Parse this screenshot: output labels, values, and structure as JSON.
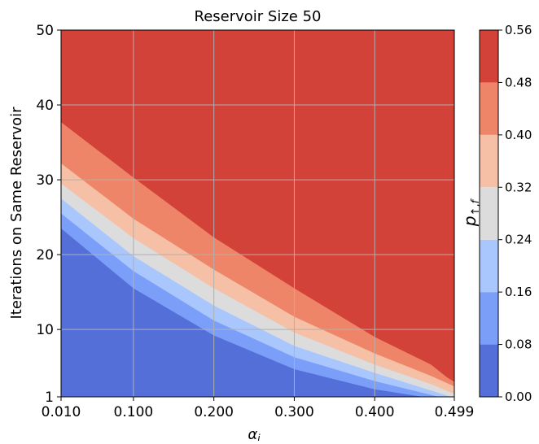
{
  "chart_data": {
    "type": "contour",
    "title": "Reservoir Size 50",
    "xlabel": "α_i",
    "ylabel": "Iterations on Same Reservoir",
    "colorbar_label": "p_{↑,f}",
    "xlim": [
      0.01,
      0.499
    ],
    "ylim": [
      1,
      50
    ],
    "x_ticks": [
      0.01,
      0.1,
      0.2,
      0.3,
      0.4,
      0.499
    ],
    "x_tick_labels": [
      "0.010",
      "0.100",
      "0.200",
      "0.300",
      "0.400",
      "0.499"
    ],
    "y_ticks": [
      1,
      10,
      20,
      30,
      40,
      50
    ],
    "y_tick_labels": [
      "1",
      "10",
      "20",
      "30",
      "40",
      "50"
    ],
    "grid": true,
    "levels": [
      0.0,
      0.08,
      0.16,
      0.24,
      0.32,
      0.4,
      0.48,
      0.56
    ],
    "level_labels": [
      "0.00",
      "0.08",
      "0.16",
      "0.24",
      "0.32",
      "0.40",
      "0.48",
      "0.56"
    ],
    "band_colors": [
      "#5470d8",
      "#7b9ff9",
      "#aac7fd",
      "#dddcdc",
      "#f5c0a5",
      "#ee8568",
      "#d24239"
    ],
    "boundaries": [
      {
        "level": 0.08,
        "points": [
          [
            0.01,
            23.5
          ],
          [
            0.1,
            15.5
          ],
          [
            0.2,
            9.2
          ],
          [
            0.3,
            4.7
          ],
          [
            0.4,
            2.0
          ],
          [
            0.46,
            1.0
          ]
        ]
      },
      {
        "level": 0.16,
        "points": [
          [
            0.01,
            25.5
          ],
          [
            0.1,
            17.8
          ],
          [
            0.2,
            11.2
          ],
          [
            0.3,
            6.3
          ],
          [
            0.4,
            3.1
          ],
          [
            0.48,
            1.0
          ]
        ]
      },
      {
        "level": 0.24,
        "points": [
          [
            0.01,
            27.5
          ],
          [
            0.1,
            19.8
          ],
          [
            0.2,
            13.2
          ],
          [
            0.3,
            7.8
          ],
          [
            0.4,
            4.2
          ],
          [
            0.495,
            1.0
          ]
        ]
      },
      {
        "level": 0.32,
        "points": [
          [
            0.01,
            29.5
          ],
          [
            0.1,
            22.2
          ],
          [
            0.2,
            15.5
          ],
          [
            0.3,
            9.6
          ],
          [
            0.4,
            5.3
          ],
          [
            0.47,
            2.7
          ],
          [
            0.499,
            1.4
          ]
        ]
      },
      {
        "level": 0.4,
        "points": [
          [
            0.01,
            32.2
          ],
          [
            0.1,
            24.8
          ],
          [
            0.2,
            18.0
          ],
          [
            0.3,
            11.7
          ],
          [
            0.4,
            6.8
          ],
          [
            0.47,
            3.8
          ],
          [
            0.499,
            2.4
          ]
        ]
      },
      {
        "level": 0.48,
        "points": [
          [
            0.01,
            37.7
          ],
          [
            0.1,
            30.3
          ],
          [
            0.2,
            22.3
          ],
          [
            0.3,
            15.5
          ],
          [
            0.4,
            9.0
          ],
          [
            0.47,
            5.3
          ],
          [
            0.49,
            3.6
          ],
          [
            0.499,
            3.0
          ]
        ]
      }
    ]
  }
}
